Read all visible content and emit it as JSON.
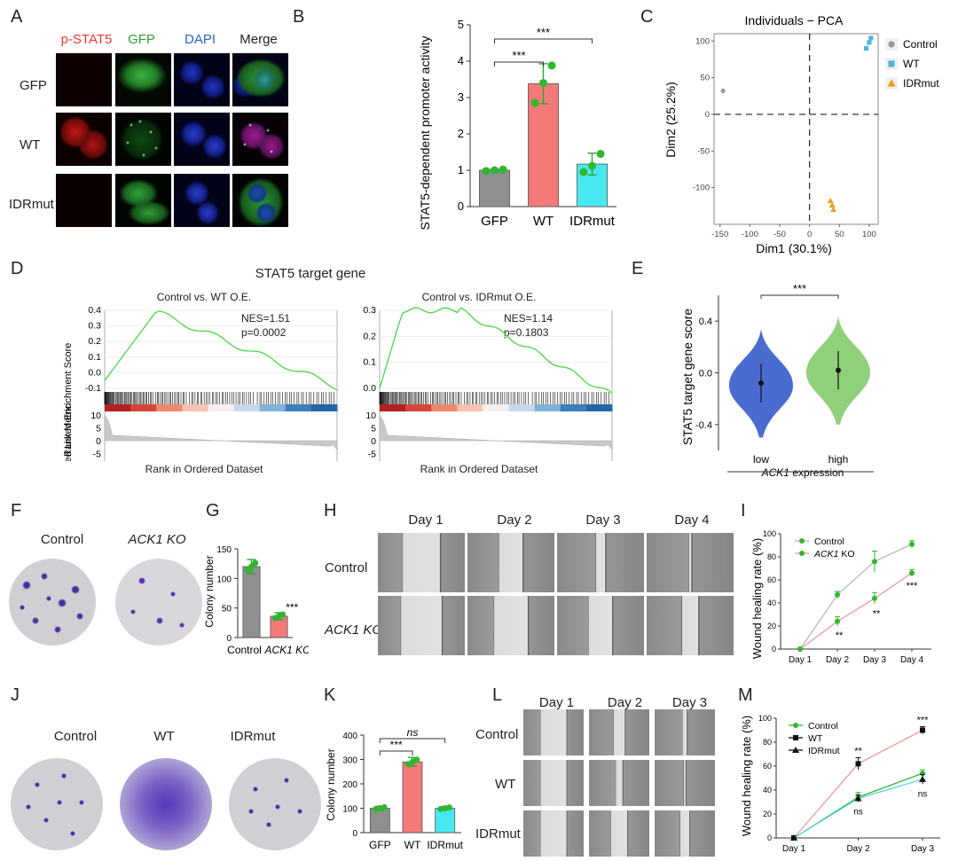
{
  "panels": {
    "A": "A",
    "B": "B",
    "C": "C",
    "D": "D",
    "E": "E",
    "F": "F",
    "G": "G",
    "H": "H",
    "I": "I",
    "J": "J",
    "K": "K",
    "L": "L",
    "M": "M"
  },
  "panelA": {
    "columns": [
      "p-STAT5",
      "GFP",
      "DAPI",
      "Merge"
    ],
    "column_colors": [
      "#e53935",
      "#2e9c3a",
      "#2a63c9",
      "#222222"
    ],
    "rows": [
      "GFP",
      "WT",
      "IDRmut"
    ]
  },
  "panelC": {
    "title": "Individuals − PCA"
  },
  "panelD": {
    "title": "STAT5 target gene",
    "left": {
      "subtitle": "Control vs. WT O.E.",
      "nes": "NES=1.51",
      "p": "p=0.0002"
    },
    "right": {
      "subtitle": "Control vs. IDRmut O.E.",
      "nes": "NES=1.14",
      "p": "p=0.1803"
    },
    "ylabel_es": "Ranked Enrichment Score",
    "ylabel_metric": "Ranked List Metric",
    "xlabel": "Rank in Ordered Dataset"
  },
  "panelE": {
    "xlabel_italic": "ACK1",
    "xlabel_rest": " expression"
  },
  "panelF": {
    "labels": [
      "Control",
      "ACK1 KO"
    ]
  },
  "panelH": {
    "days": [
      "Day 1",
      "Day 2",
      "Day 3",
      "Day 4"
    ],
    "rows": [
      "Control",
      "ACK1 KO"
    ]
  },
  "panelJ": {
    "labels": [
      "Control",
      "WT",
      "IDRmut"
    ]
  },
  "panelL": {
    "days": [
      "Day 1",
      "Day 2",
      "Day 3"
    ],
    "rows": [
      "Control",
      "WT",
      "IDRmut"
    ]
  },
  "chart_data": [
    {
      "panel": "B",
      "type": "bar",
      "categories": [
        "GFP",
        "WT",
        "IDRmut"
      ],
      "values": [
        1.0,
        3.38,
        1.17
      ],
      "errors": [
        0.03,
        0.55,
        0.3
      ],
      "points": [
        [
          0.98,
          1.0,
          1.02
        ],
        [
          2.85,
          3.4,
          3.88
        ],
        [
          0.95,
          1.12,
          1.45
        ]
      ],
      "colors": [
        "#8f8f8f",
        "#f47a7a",
        "#49e8f0"
      ],
      "ylabel": "STAT5-dependent promoter activity",
      "ylim": [
        0,
        5
      ],
      "yticks": [
        0,
        1,
        2,
        3,
        4,
        5
      ],
      "significance": [
        {
          "from": "GFP",
          "to": "WT",
          "label": "***"
        },
        {
          "from": "GFP",
          "to": "IDRmut",
          "label": "***"
        }
      ]
    },
    {
      "panel": "C",
      "type": "scatter",
      "title": "Individuals − PCA",
      "xlabel": "Dim1 (30.1%)",
      "ylabel": "Dim2 (25.2%)",
      "xlim": [
        -160,
        115
      ],
      "ylim": [
        -150,
        110
      ],
      "xticks": [
        -150,
        -100,
        -50,
        0,
        50,
        100
      ],
      "yticks": [
        -100,
        -50,
        0,
        50,
        100
      ],
      "series": [
        {
          "name": "Control",
          "color": "#9a9a9a",
          "shape": "circle",
          "points": [
            [
              -145,
              32
            ]
          ]
        },
        {
          "name": "WT",
          "color": "#4fb6d8",
          "shape": "square",
          "points": [
            [
              95,
              90
            ],
            [
              100,
              98
            ],
            [
              103,
              104
            ]
          ]
        },
        {
          "name": "IDRmut",
          "color": "#e8a020",
          "shape": "triangle",
          "points": [
            [
              35,
              -118
            ],
            [
              38,
              -124
            ],
            [
              40,
              -130
            ]
          ]
        }
      ],
      "legend": "right"
    },
    {
      "panel": "D-left",
      "type": "line",
      "xlim": [
        0,
        32000
      ],
      "xticks": [
        10000,
        20000,
        30000
      ],
      "ylim": [
        -0.1,
        0.4
      ],
      "yticks": [
        -0.1,
        0.0,
        0.1,
        0.2,
        0.3,
        0.4
      ],
      "metric_yticks": [
        10,
        5,
        0,
        -5
      ]
    },
    {
      "panel": "D-right",
      "type": "line",
      "xlim": [
        0,
        32000
      ],
      "xticks": [
        10000,
        20000,
        30000
      ],
      "ylim": [
        0,
        0.3
      ],
      "yticks": [
        0.0,
        0.1,
        0.2,
        0.3
      ],
      "metric_yticks": [
        10,
        5,
        0,
        -5
      ]
    },
    {
      "panel": "E",
      "type": "violin",
      "categories": [
        "low",
        "high"
      ],
      "colors": [
        "#4a6bd0",
        "#8fd07a"
      ],
      "medians": [
        -0.08,
        0.02
      ],
      "ylabel": "STAT5 target gene score",
      "ylim": [
        -0.6,
        0.6
      ],
      "yticks": [
        -0.4,
        0.0,
        0.4
      ],
      "significance": [
        {
          "from": "low",
          "to": "high",
          "label": "***"
        }
      ]
    },
    {
      "panel": "G",
      "type": "bar",
      "categories": [
        "Control",
        "ACK1 KO"
      ],
      "values": [
        120,
        36
      ],
      "errors": [
        12,
        6
      ],
      "colors": [
        "#8f8f8f",
        "#f47a7a"
      ],
      "ylabel": "Colony number",
      "ylim": [
        0,
        150
      ],
      "yticks": [
        0,
        50,
        100,
        150
      ],
      "significance": [
        {
          "at": "ACK1 KO",
          "label": "***"
        }
      ]
    },
    {
      "panel": "I",
      "type": "line",
      "categories": [
        "Day 1",
        "Day 2",
        "Day 3",
        "Day 4"
      ],
      "ylabel": "Wound healing rate (%)",
      "ylim": [
        0,
        100
      ],
      "yticks": [
        0,
        20,
        40,
        60,
        80,
        100
      ],
      "series": [
        {
          "name": "Control",
          "color": "#2fb72f",
          "values": [
            0,
            47,
            76,
            91
          ],
          "errors": [
            0,
            3,
            9,
            3
          ]
        },
        {
          "name": "ACK1 KO",
          "color": "#2fb72f",
          "values": [
            0,
            24,
            44,
            66
          ],
          "errors": [
            0,
            4,
            5,
            3
          ]
        }
      ],
      "significance": [
        {
          "day": "Day 2",
          "label": "**"
        },
        {
          "day": "Day 3",
          "label": "**"
        },
        {
          "day": "Day 4",
          "label": "***"
        }
      ]
    },
    {
      "panel": "K",
      "type": "bar",
      "categories": [
        "GFP",
        "WT",
        "IDRmut"
      ],
      "values": [
        100,
        290,
        100
      ],
      "errors": [
        8,
        18,
        6
      ],
      "colors": [
        "#8f8f8f",
        "#f47a7a",
        "#49e8f0"
      ],
      "ylabel": "Colony number",
      "ylim": [
        0,
        400
      ],
      "yticks": [
        0,
        100,
        200,
        300,
        400
      ],
      "significance": [
        {
          "from": "GFP",
          "to": "WT",
          "label": "***"
        },
        {
          "from": "GFP",
          "to": "IDRmut",
          "label": "ns"
        }
      ]
    },
    {
      "panel": "M",
      "type": "line",
      "categories": [
        "Day 1",
        "Day 2",
        "Day 3"
      ],
      "ylabel": "Wound healing rate (%)",
      "ylim": [
        0,
        100
      ],
      "yticks": [
        0,
        20,
        40,
        60,
        80,
        100
      ],
      "series": [
        {
          "name": "Control",
          "color": "#2fb72f",
          "values": [
            0,
            34,
            54
          ],
          "errors": [
            0,
            4,
            3
          ]
        },
        {
          "name": "WT",
          "color": "#f29999",
          "values": [
            0,
            62,
            90
          ],
          "errors": [
            0,
            5,
            3
          ]
        },
        {
          "name": "IDRmut",
          "color": "#59d8e8",
          "values": [
            0,
            33,
            49
          ],
          "errors": [
            0,
            3,
            4
          ]
        }
      ],
      "significance": [
        {
          "day": "Day 2",
          "top": "**",
          "bottom": "ns"
        },
        {
          "day": "Day 3",
          "top": "***",
          "bottom": "ns"
        }
      ]
    }
  ]
}
